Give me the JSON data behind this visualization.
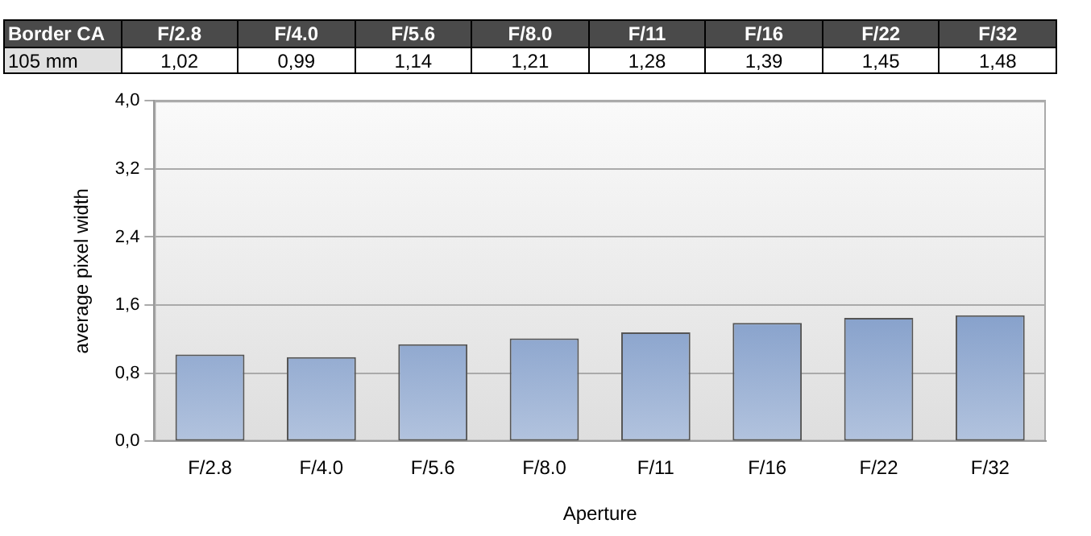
{
  "chart_data": {
    "type": "bar",
    "title": "Border CA",
    "xlabel": "Aperture",
    "ylabel": "average pixel width",
    "categories": [
      "F/2.8",
      "F/4.0",
      "F/5.6",
      "F/8.0",
      "F/11",
      "F/16",
      "F/22",
      "F/32"
    ],
    "series": [
      {
        "name": "105 mm",
        "color": "#3e68ac",
        "values": [
          1.02,
          0.99,
          1.14,
          1.21,
          1.28,
          1.39,
          1.45,
          1.48
        ],
        "value_labels": [
          "1,02",
          "0,99",
          "1,14",
          "1,21",
          "1,28",
          "1,39",
          "1,45",
          "1,48"
        ]
      }
    ],
    "ylim": [
      0,
      4
    ],
    "yticks": [
      {
        "value": 0,
        "label": "0,0"
      },
      {
        "value": 0.8,
        "label": "0,8"
      },
      {
        "value": 1.6,
        "label": "1,6"
      },
      {
        "value": 2.4,
        "label": "2,4"
      },
      {
        "value": 3.2,
        "label": "3,2"
      },
      {
        "value": 4,
        "label": "4,0"
      }
    ],
    "grid": "y",
    "legend": false
  }
}
